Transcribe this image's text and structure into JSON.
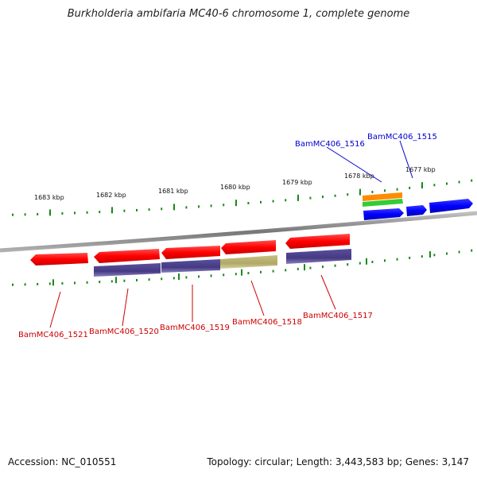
{
  "title": "Burkholderia ambifaria MC40-6 chromosome 1, complete genome",
  "footer": {
    "accession": "Accession: NC_010551",
    "summary": "Topology: circular; Length: 3,443,583 bp; Genes: 3,147"
  },
  "scale_labels": [
    "1683 kbp",
    "1682 kbp",
    "1681 kbp",
    "1680 kbp",
    "1679 kbp",
    "1678 kbp",
    "1677 kbp"
  ],
  "genes": {
    "forward": [
      {
        "name": "BamMC406_1516",
        "color": "#0000cc"
      },
      {
        "name": "BamMC406_1515",
        "color": "#0000cc"
      }
    ],
    "reverse": [
      {
        "name": "BamMC406_1521",
        "color": "#cc0000"
      },
      {
        "name": "BamMC406_1520",
        "color": "#cc0000"
      },
      {
        "name": "BamMC406_1519",
        "color": "#cc0000"
      },
      {
        "name": "BamMC406_1518",
        "color": "#cc0000"
      },
      {
        "name": "BamMC406_1517",
        "color": "#cc0000"
      }
    ]
  },
  "colors": {
    "cds_reverse": "#ff0000",
    "cds_forward": "#0000ff",
    "feature_purple": "#4a3f8a",
    "feature_olive": "#b8b070",
    "feature_orange": "#ff8c00",
    "feature_green": "#33cc33",
    "tick": "#1a8a1a",
    "backbone": "#888888"
  }
}
